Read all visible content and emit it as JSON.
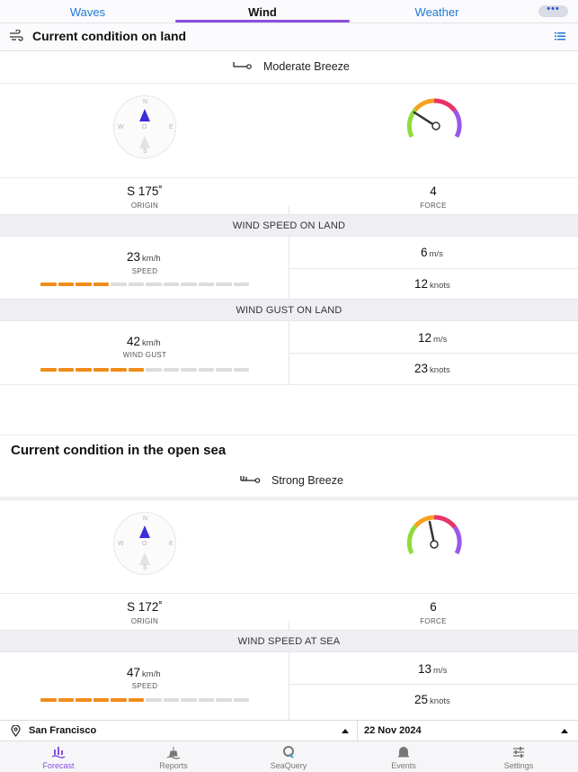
{
  "tabs": [
    "Waves",
    "Wind",
    "Weather"
  ],
  "active_tab": "Wind",
  "more_label": "•••",
  "land": {
    "title": "Current condition on land",
    "breeze_label": "Moderate Breeze",
    "compass": {
      "n": "N",
      "s": "S",
      "e": "E",
      "w": "W",
      "o": "O"
    },
    "direction": "S 175˚",
    "direction_caption": "ORIGIN",
    "force": "4",
    "force_caption": "FORCE",
    "speed_band": "WIND SPEED ON LAND",
    "speed_value": "23",
    "speed_unit": "km/h",
    "speed_caption": "SPEED",
    "speed_ms": "6",
    "speed_knots": "12",
    "gust_band": "WIND GUST ON LAND",
    "gust_value": "42",
    "gust_unit": "km/h",
    "gust_caption": "WIND GUST",
    "gust_ms": "12",
    "gust_knots": "23"
  },
  "sea": {
    "title": "Current condition in the open sea",
    "breeze_label": "Strong Breeze",
    "compass": {
      "n": "N",
      "s": "S",
      "e": "E",
      "w": "W",
      "o": "O"
    },
    "direction": "S 172˚",
    "direction_caption": "ORIGIN",
    "force": "6",
    "force_caption": "FORCE",
    "speed_band": "WIND SPEED AT SEA",
    "speed_value": "47",
    "speed_unit": "km/h",
    "speed_caption": "SPEED",
    "speed_ms": "13",
    "speed_knots": "25"
  },
  "units": {
    "ms": "m/s",
    "knots": "knots"
  },
  "speed_bar": {
    "segments": 12,
    "land_speed_on": 4,
    "land_gust_on": 6,
    "sea_speed_on": 6
  },
  "location": "San Francisco",
  "date": "22 Nov 2024",
  "nav": [
    "Forecast",
    "Reports",
    "SeaQuery",
    "Events",
    "Settings"
  ],
  "active_nav": "Forecast",
  "colors": {
    "accent": "#8a4fe0",
    "link": "#1e7ad6",
    "bar": "#f08c1a",
    "compass_needle": "#3a2fd8"
  }
}
